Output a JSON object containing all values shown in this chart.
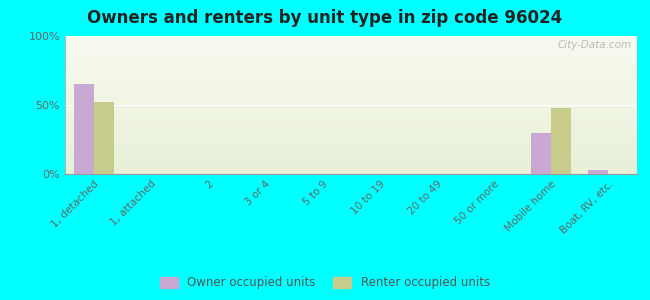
{
  "title": "Owners and renters by unit type in zip code 96024",
  "categories": [
    "1, detached",
    "1, attached",
    "2",
    "3 or 4",
    "5 to 9",
    "10 to 19",
    "20 to 49",
    "50 or more",
    "Mobile home",
    "Boat, RV, etc."
  ],
  "owner_values": [
    65,
    0,
    0,
    0,
    0,
    0,
    0,
    0,
    30,
    3
  ],
  "renter_values": [
    52,
    0,
    0,
    0,
    0,
    0,
    0,
    0,
    48,
    0
  ],
  "owner_color": "#c9a8d4",
  "renter_color": "#c8cc8a",
  "background_color": "#00ffff",
  "ylim": [
    0,
    100
  ],
  "yticks": [
    0,
    50,
    100
  ],
  "ytick_labels": [
    "0%",
    "50%",
    "100%"
  ],
  "title_fontsize": 12,
  "legend_labels": [
    "Owner occupied units",
    "Renter occupied units"
  ],
  "bar_width": 0.35,
  "watermark": "City-Data.com"
}
